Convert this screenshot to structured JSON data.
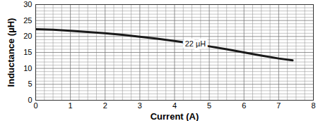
{
  "chart_data": {
    "type": "line",
    "x_label": "Current (A)",
    "y_label": "Inductance (µH)",
    "series": [
      {
        "name": "22 µH",
        "color": "#1a1a1a",
        "x": [
          0,
          0.5,
          1,
          1.5,
          2,
          2.5,
          3,
          3.5,
          4,
          4.5,
          5,
          5.5,
          6,
          6.5,
          7,
          7.4
        ],
        "values": [
          22.3,
          22.1,
          21.8,
          21.4,
          21.0,
          20.5,
          19.9,
          19.3,
          18.6,
          17.8,
          16.9,
          16.0,
          15.0,
          14.0,
          13.1,
          12.5
        ]
      }
    ],
    "annotations": [
      {
        "text": "22 µH",
        "x": 4.6,
        "y": 17.6
      }
    ],
    "xlim": [
      0,
      8
    ],
    "xticks": [
      0,
      1,
      2,
      3,
      4,
      5,
      6,
      7,
      8
    ],
    "ylim": [
      0,
      30
    ],
    "yticks": [
      0,
      5,
      10,
      15,
      20,
      25,
      30
    ],
    "grid": true
  }
}
